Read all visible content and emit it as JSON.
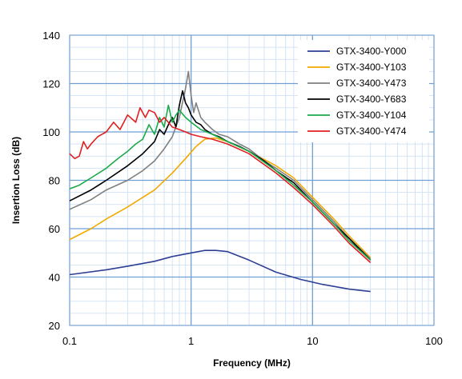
{
  "chart_data": {
    "type": "line",
    "title": "",
    "xlabel": "Frequency (MHz)",
    "ylabel": "Insertion Loss (dB)",
    "xscale": "log",
    "xlim": [
      0.1,
      100
    ],
    "ylim": [
      20,
      140
    ],
    "x_ticks": [
      "0.1",
      "1",
      "10",
      "100"
    ],
    "y_ticks": [
      "20",
      "40",
      "60",
      "80",
      "100",
      "120",
      "140"
    ],
    "grid": true,
    "legend_position": "top-right",
    "series": [
      {
        "name": "GTX-3400-Y000",
        "color": "#2E3F92",
        "x": [
          0.1,
          0.2,
          0.3,
          0.5,
          0.7,
          1.0,
          1.3,
          1.6,
          2.0,
          3.0,
          5.0,
          8.0,
          12.0,
          20.0,
          30.0
        ],
        "y": [
          41,
          43,
          44.5,
          46.5,
          48.5,
          50,
          51,
          51,
          50.5,
          47,
          42,
          39,
          37,
          35,
          34
        ]
      },
      {
        "name": "GTX-3400-Y103",
        "color": "#F2A900",
        "x": [
          0.1,
          0.15,
          0.2,
          0.3,
          0.5,
          0.7,
          0.9,
          1.1,
          1.3,
          1.6,
          2.0,
          3.0,
          5.0,
          7.0,
          10.0,
          15.0,
          20.0,
          30.0
        ],
        "y": [
          55.5,
          60,
          64,
          69,
          76,
          83,
          89,
          94,
          97,
          97.5,
          96,
          92,
          86,
          81,
          73,
          64,
          57,
          48
        ]
      },
      {
        "name": "GTX-3400-Y473",
        "color": "#808080",
        "x": [
          0.1,
          0.15,
          0.2,
          0.3,
          0.4,
          0.5,
          0.6,
          0.7,
          0.8,
          0.9,
          0.95,
          1.0,
          1.05,
          1.1,
          1.2,
          1.3,
          1.5,
          1.7,
          2.0,
          2.5,
          3.0,
          4.0,
          5.0,
          7.0,
          10.0,
          15.0,
          20.0,
          30.0
        ],
        "y": [
          68,
          72,
          76,
          80,
          84,
          88,
          93,
          98,
          106,
          118,
          125,
          115,
          108,
          112,
          106,
          104,
          101,
          99,
          98,
          95,
          93,
          88,
          85,
          80,
          72,
          63,
          56,
          47.5
        ]
      },
      {
        "name": "GTX-3400-Y683",
        "color": "#000000",
        "x": [
          0.1,
          0.15,
          0.2,
          0.3,
          0.4,
          0.5,
          0.55,
          0.6,
          0.65,
          0.7,
          0.75,
          0.8,
          0.85,
          0.9,
          0.95,
          1.0,
          1.1,
          1.2,
          1.3,
          1.5,
          1.7,
          2.0,
          2.5,
          3.0,
          4.0,
          5.0,
          7.0,
          10.0,
          15.0,
          20.0,
          30.0
        ],
        "y": [
          71.5,
          76,
          80,
          86,
          91,
          96,
          101,
          99,
          103,
          106,
          102,
          111,
          117,
          112,
          110,
          107,
          104,
          103,
          101,
          99,
          98,
          96,
          94,
          92,
          88,
          84,
          79,
          71,
          62,
          56,
          47
        ]
      },
      {
        "name": "GTX-3400-Y104",
        "color": "#1BAA4A",
        "x": [
          0.1,
          0.12,
          0.15,
          0.2,
          0.25,
          0.3,
          0.35,
          0.4,
          0.45,
          0.5,
          0.55,
          0.6,
          0.65,
          0.7,
          0.75,
          0.8,
          0.9,
          1.0,
          1.2,
          1.5,
          2.0,
          3.0,
          5.0,
          7.0,
          10.0,
          15.0,
          20.0,
          30.0
        ],
        "y": [
          76.5,
          78,
          81,
          85,
          89,
          92,
          95,
          97,
          103,
          99,
          106,
          102,
          111,
          104,
          107,
          109,
          106,
          104,
          101,
          99,
          96,
          92,
          84,
          78,
          71,
          62,
          55,
          47
        ]
      },
      {
        "name": "GTX-3400-Y474",
        "color": "#E02020",
        "x": [
          0.1,
          0.11,
          0.12,
          0.13,
          0.14,
          0.15,
          0.17,
          0.2,
          0.23,
          0.26,
          0.3,
          0.35,
          0.38,
          0.42,
          0.45,
          0.5,
          0.55,
          0.6,
          0.7,
          0.8,
          0.9,
          1.0,
          1.2,
          1.5,
          2.0,
          3.0,
          5.0,
          7.0,
          10.0,
          15.0,
          20.0,
          30.0
        ],
        "y": [
          91,
          89,
          90,
          96,
          93,
          95,
          98,
          100,
          104,
          101,
          107,
          104,
          110,
          106,
          109,
          108,
          104,
          106,
          102,
          101,
          100,
          99,
          98,
          97,
          95,
          91,
          83,
          77,
          70,
          61,
          54,
          46
        ]
      }
    ]
  }
}
